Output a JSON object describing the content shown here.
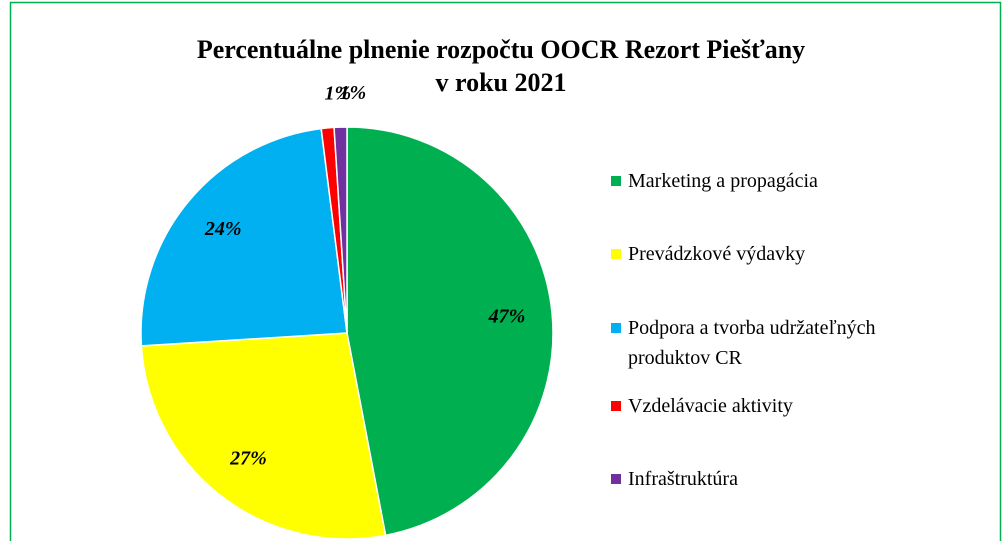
{
  "chart_data": {
    "type": "pie",
    "title": [
      "Percentuálne plnenie rozpočtu OOCR Rezort Piešťany",
      "v roku 2021"
    ],
    "categories": [
      "Marketing a propagácia",
      "Prevádzkové výdavky",
      "Podpora a tvorba udržateľných produktov CR",
      "Vzdelávacie aktivity",
      "Infraštruktúra"
    ],
    "values": [
      47,
      27,
      24,
      1,
      1
    ],
    "value_labels": [
      "47%",
      "27%",
      "24%",
      "1%",
      "1%"
    ],
    "colors": [
      "#00b050",
      "#ffff00",
      "#00b0f0",
      "#ff0000",
      "#7030a0"
    ],
    "legend": "right"
  }
}
